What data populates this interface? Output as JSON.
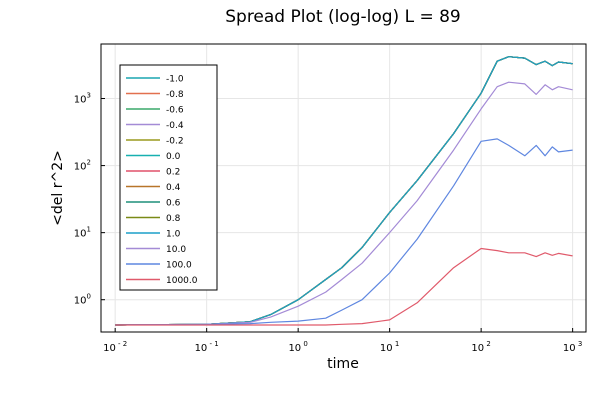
{
  "chart_data": {
    "type": "line",
    "title": "Spread Plot (log-log) L = 89",
    "xlabel": "time",
    "ylabel": "<del r^2>",
    "x_scale": "log",
    "y_scale": "log",
    "xlim": [
      0.007,
      1400
    ],
    "ylim": [
      0.33,
      6500
    ],
    "x_ticks": [
      {
        "value": 0.01,
        "base": "10",
        "exp": "- 2"
      },
      {
        "value": 0.1,
        "base": "10",
        "exp": "- 1"
      },
      {
        "value": 1,
        "base": "10",
        "exp": "0"
      },
      {
        "value": 10,
        "base": "10",
        "exp": "1"
      },
      {
        "value": 100,
        "base": "10",
        "exp": "2"
      },
      {
        "value": 1000,
        "base": "10",
        "exp": "3"
      }
    ],
    "y_ticks": [
      {
        "value": 1,
        "base": "10",
        "exp": "0"
      },
      {
        "value": 10,
        "base": "10",
        "exp": "1"
      },
      {
        "value": 100,
        "base": "10",
        "exp": "2"
      },
      {
        "value": 1000,
        "base": "10",
        "exp": "3"
      }
    ],
    "grid": true,
    "legend_position": "top-left",
    "series": [
      {
        "name": "-1.0",
        "color": "#1aa5b0",
        "x": [
          0.01,
          0.1,
          0.3,
          0.5,
          1,
          2,
          3,
          5,
          10,
          20,
          50,
          100,
          150,
          200,
          300,
          400,
          500,
          600,
          700,
          1000
        ],
        "y": [
          0.42,
          0.43,
          0.47,
          0.6,
          1.0,
          2.0,
          3.0,
          6.0,
          20,
          60,
          300,
          1200,
          3600,
          4200,
          4000,
          3200,
          3600,
          3100,
          3500,
          3300
        ]
      },
      {
        "name": "-0.8",
        "color": "#e2704f",
        "x": [
          0.01,
          0.1,
          0.3,
          0.5,
          1,
          2,
          3,
          5,
          10,
          20,
          50,
          100,
          150,
          200,
          300,
          400,
          500,
          600,
          700,
          1000
        ],
        "y": [
          0.42,
          0.43,
          0.47,
          0.6,
          1.0,
          2.0,
          3.0,
          6.0,
          20,
          60,
          300,
          1200,
          3600,
          4200,
          4000,
          3200,
          3600,
          3100,
          3500,
          3300
        ]
      },
      {
        "name": "-0.6",
        "color": "#3aa86a",
        "x": [
          0.01,
          0.1,
          0.3,
          0.5,
          1,
          2,
          3,
          5,
          10,
          20,
          50,
          100,
          150,
          200,
          300,
          400,
          500,
          600,
          700,
          1000
        ],
        "y": [
          0.42,
          0.43,
          0.47,
          0.6,
          1.0,
          2.0,
          3.0,
          6.0,
          20,
          60,
          300,
          1200,
          3600,
          4200,
          4000,
          3200,
          3600,
          3100,
          3500,
          3300
        ]
      },
      {
        "name": "-0.4",
        "color": "#a48bd6",
        "x": [
          0.01,
          0.1,
          0.3,
          0.5,
          1,
          2,
          3,
          5,
          10,
          20,
          50,
          100,
          150,
          200,
          300,
          400,
          500,
          600,
          700,
          1000
        ],
        "y": [
          0.42,
          0.43,
          0.47,
          0.6,
          1.0,
          2.0,
          3.0,
          6.0,
          20,
          60,
          300,
          1200,
          3600,
          4200,
          4000,
          3200,
          3600,
          3100,
          3500,
          3300
        ]
      },
      {
        "name": "-0.2",
        "color": "#9a9a1e",
        "x": [
          0.01,
          0.1,
          0.3,
          0.5,
          1,
          2,
          3,
          5,
          10,
          20,
          50,
          100,
          150,
          200,
          300,
          400,
          500,
          600,
          700,
          1000
        ],
        "y": [
          0.42,
          0.43,
          0.47,
          0.6,
          1.0,
          2.0,
          3.0,
          6.0,
          20,
          60,
          300,
          1200,
          3600,
          4200,
          4000,
          3200,
          3600,
          3100,
          3500,
          3300
        ]
      },
      {
        "name": "0.0",
        "color": "#17b0b0",
        "x": [
          0.01,
          0.1,
          0.3,
          0.5,
          1,
          2,
          3,
          5,
          10,
          20,
          50,
          100,
          150,
          200,
          300,
          400,
          500,
          600,
          700,
          1000
        ],
        "y": [
          0.42,
          0.43,
          0.47,
          0.6,
          1.0,
          2.0,
          3.0,
          6.0,
          20,
          60,
          300,
          1200,
          3600,
          4200,
          4000,
          3200,
          3600,
          3100,
          3500,
          3300
        ]
      },
      {
        "name": "0.2",
        "color": "#e0506a",
        "x": [
          0.01,
          0.1,
          0.3,
          0.5,
          1,
          2,
          3,
          5,
          10,
          20,
          50,
          100,
          150,
          200,
          300,
          400,
          500,
          600,
          700,
          1000
        ],
        "y": [
          0.42,
          0.43,
          0.47,
          0.6,
          1.0,
          2.0,
          3.0,
          6.0,
          20,
          60,
          300,
          1200,
          3600,
          4200,
          4000,
          3200,
          3600,
          3100,
          3500,
          3300
        ]
      },
      {
        "name": "0.4",
        "color": "#b8752a",
        "x": [
          0.01,
          0.1,
          0.3,
          0.5,
          1,
          2,
          3,
          5,
          10,
          20,
          50,
          100,
          150,
          200,
          300,
          400,
          500,
          600,
          700,
          1000
        ],
        "y": [
          0.42,
          0.43,
          0.47,
          0.6,
          1.0,
          2.0,
          3.0,
          6.0,
          20,
          60,
          300,
          1200,
          3600,
          4200,
          4000,
          3200,
          3600,
          3100,
          3500,
          3300
        ]
      },
      {
        "name": "0.6",
        "color": "#1f8f7a",
        "x": [
          0.01,
          0.1,
          0.3,
          0.5,
          1,
          2,
          3,
          5,
          10,
          20,
          50,
          100,
          150,
          200,
          300,
          400,
          500,
          600,
          700,
          1000
        ],
        "y": [
          0.42,
          0.43,
          0.47,
          0.6,
          1.0,
          2.0,
          3.0,
          6.0,
          20,
          60,
          300,
          1200,
          3600,
          4200,
          4000,
          3200,
          3600,
          3100,
          3500,
          3300
        ]
      },
      {
        "name": "0.8",
        "color": "#7a8a16",
        "x": [
          0.01,
          0.1,
          0.3,
          0.5,
          1,
          2,
          3,
          5,
          10,
          20,
          50,
          100,
          150,
          200,
          300,
          400,
          500,
          600,
          700,
          1000
        ],
        "y": [
          0.42,
          0.43,
          0.47,
          0.6,
          1.0,
          2.0,
          3.0,
          6.0,
          20,
          60,
          300,
          1200,
          3600,
          4200,
          4000,
          3200,
          3600,
          3100,
          3500,
          3300
        ]
      },
      {
        "name": "1.0",
        "color": "#1c9fc8",
        "x": [
          0.01,
          0.1,
          0.3,
          0.5,
          1,
          2,
          3,
          5,
          10,
          20,
          50,
          100,
          150,
          200,
          300,
          400,
          500,
          600,
          700,
          1000
        ],
        "y": [
          0.42,
          0.43,
          0.47,
          0.6,
          1.0,
          2.0,
          3.0,
          6.0,
          20,
          60,
          300,
          1200,
          3600,
          4200,
          4000,
          3200,
          3600,
          3100,
          3500,
          3300
        ]
      },
      {
        "name": "10.0",
        "color": "#a48bd6",
        "x": [
          0.01,
          0.1,
          0.3,
          0.5,
          1,
          2,
          3,
          5,
          10,
          20,
          50,
          100,
          150,
          200,
          300,
          400,
          500,
          600,
          700,
          1000
        ],
        "y": [
          0.42,
          0.43,
          0.46,
          0.55,
          0.8,
          1.3,
          2.0,
          3.5,
          10,
          30,
          170,
          700,
          1500,
          1750,
          1650,
          1150,
          1600,
          1350,
          1500,
          1350
        ]
      },
      {
        "name": "100.0",
        "color": "#5f87e0",
        "x": [
          0.01,
          0.1,
          0.3,
          0.5,
          1,
          2,
          3,
          5,
          10,
          20,
          50,
          100,
          150,
          200,
          300,
          400,
          500,
          600,
          700,
          1000
        ],
        "y": [
          0.42,
          0.43,
          0.44,
          0.46,
          0.48,
          0.53,
          0.7,
          1.0,
          2.5,
          8,
          50,
          230,
          250,
          200,
          140,
          200,
          140,
          190,
          160,
          170
        ]
      },
      {
        "name": "1000.0",
        "color": "#e05a6b",
        "x": [
          0.01,
          0.1,
          0.3,
          1,
          2,
          3,
          5,
          10,
          20,
          50,
          100,
          150,
          200,
          300,
          400,
          500,
          600,
          700,
          1000
        ],
        "y": [
          0.42,
          0.42,
          0.42,
          0.42,
          0.42,
          0.43,
          0.44,
          0.5,
          0.9,
          3.0,
          5.8,
          5.4,
          5.0,
          5.0,
          4.4,
          5.0,
          4.6,
          4.9,
          4.5
        ]
      }
    ]
  }
}
